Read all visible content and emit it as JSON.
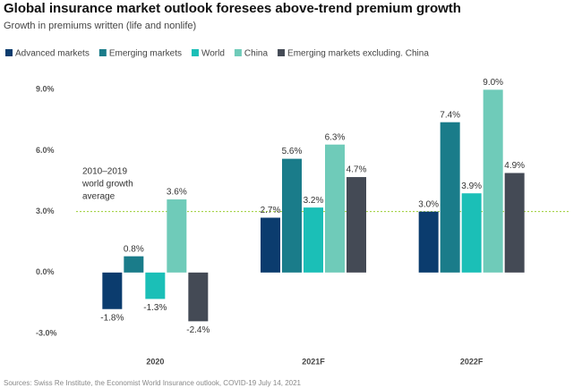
{
  "chart_data": {
    "type": "bar",
    "title": "Global insurance market outlook foresees above-trend premium growth",
    "subtitle": "Growth in premiums written (life and nonlife)",
    "categories": [
      "2020",
      "2021F",
      "2022F"
    ],
    "series": [
      {
        "name": "Advanced markets",
        "color": "#0b3c6e",
        "values": [
          -1.8,
          2.7,
          3.0
        ],
        "value_labels": [
          "-1.8%",
          "2.7%",
          "3.0%"
        ]
      },
      {
        "name": "Emerging markets",
        "color": "#1a7c8a",
        "values": [
          0.8,
          5.6,
          7.4
        ],
        "value_labels": [
          "0.8%",
          "5.6%",
          "7.4%"
        ]
      },
      {
        "name": "World",
        "color": "#1bbfb7",
        "values": [
          -1.3,
          3.2,
          3.9
        ],
        "value_labels": [
          "-1.3%",
          "3.2%",
          "3.9%"
        ]
      },
      {
        "name": "China",
        "color": "#6fcbb9",
        "values": [
          3.6,
          6.3,
          9.0
        ],
        "value_labels": [
          "3.6%",
          "6.3%",
          "9.0%"
        ]
      },
      {
        "name": "Emerging markets excluding. China",
        "color": "#444a55",
        "values": [
          -2.4,
          4.7,
          4.9
        ],
        "value_labels": [
          "-2.4%",
          "4.7%",
          "4.9%"
        ]
      }
    ],
    "ylim": [
      -3,
      9.5
    ],
    "yticks": [
      {
        "value": -3,
        "label": "-3.0%"
      },
      {
        "value": 0,
        "label": "0.0%"
      },
      {
        "value": 3,
        "label": "3.0%"
      },
      {
        "value": 6,
        "label": "6.0%"
      },
      {
        "value": 9,
        "label": "9.0%"
      }
    ],
    "reference_line": {
      "value": 3.0,
      "color": "#9acd32",
      "label_lines": [
        "2010–2019",
        "world growth",
        "average"
      ]
    },
    "legend": "top",
    "source": "Sources: Swiss Re Institute, the Economist World Insurance outlook, COVID-19 July 14, 2021"
  }
}
